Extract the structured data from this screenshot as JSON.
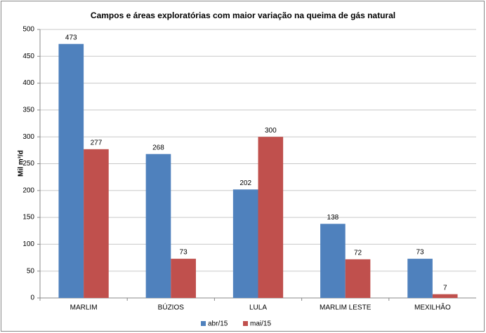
{
  "chart_data": {
    "type": "bar",
    "title": "Campos e áreas exploratórias com maior variação na queima de gás natural",
    "y_label": "Mil m³/d",
    "categories": [
      "MARLIM",
      "BÚZIOS",
      "LULA",
      "MARLIM LESTE",
      "MEXILHÃO"
    ],
    "series": [
      {
        "name": "abr/15",
        "color": "#4f81bd",
        "values": [
          473,
          268,
          202,
          138,
          73
        ]
      },
      {
        "name": "mai/15",
        "color": "#c0504d",
        "values": [
          277,
          73,
          300,
          72,
          7
        ]
      }
    ],
    "ylim": [
      0,
      500
    ],
    "yticks": [
      0,
      50,
      100,
      150,
      200,
      250,
      300,
      350,
      400,
      450,
      500
    ],
    "grid": true,
    "legend": "bottom"
  }
}
